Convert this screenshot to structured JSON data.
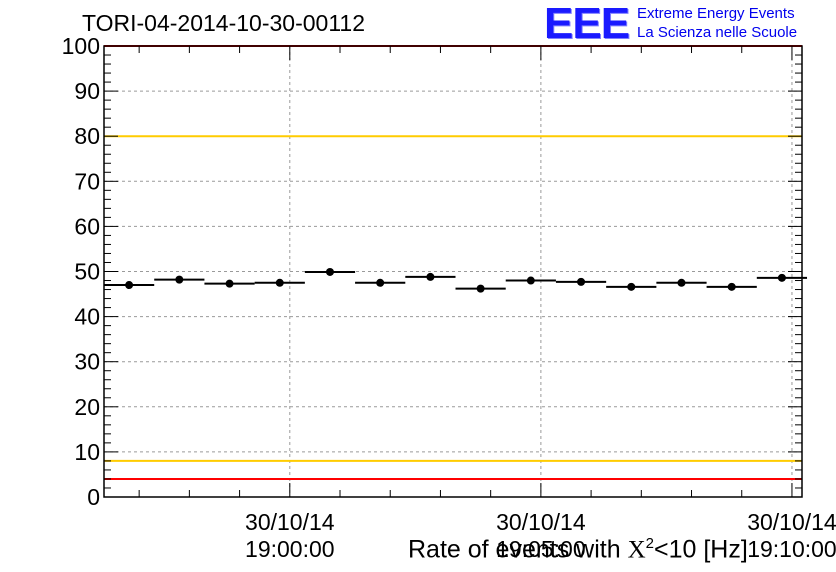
{
  "header": {
    "title": "TORI-04-2014-10-30-00112",
    "logo_mark": "EEE",
    "logo_line1": "Extreme Energy Events",
    "logo_line2": "La Scienza nelle Scuole"
  },
  "colors": {
    "red_limit": "#ff0000",
    "yellow_limit": "#ffcc00",
    "marker": "#000000",
    "grid": "#9a9a9a"
  },
  "chart_data": {
    "type": "scatter",
    "title": "TORI-04-2014-10-30-00112",
    "xlabel_prefix": "Rate of events with ",
    "xlabel_symbol": "X",
    "xlabel_sup": "2",
    "xlabel_suffix": "<10 [Hz]",
    "ylabel": "",
    "ylim": [
      0,
      100
    ],
    "yticks": [
      "0",
      "10",
      "20",
      "30",
      "40",
      "50",
      "60",
      "70",
      "80",
      "90",
      "100"
    ],
    "x_unit": "minutes",
    "xlim": [
      -3.7,
      10.2
    ],
    "xticks": [
      {
        "x": 0,
        "date": "30/10/14",
        "time": "19:00:00"
      },
      {
        "x": 5,
        "date": "30/10/14",
        "time": "19:05:00"
      },
      {
        "x": 10,
        "date": "30/10/14",
        "time": "19:10:00"
      }
    ],
    "grid": true,
    "errorbar_half_width": 0.5,
    "points": [
      {
        "x": -3.2,
        "y": 47.0
      },
      {
        "x": -2.2,
        "y": 48.2
      },
      {
        "x": -1.2,
        "y": 47.3
      },
      {
        "x": -0.2,
        "y": 47.5
      },
      {
        "x": 0.8,
        "y": 49.9
      },
      {
        "x": 1.8,
        "y": 47.5
      },
      {
        "x": 2.8,
        "y": 48.8
      },
      {
        "x": 3.8,
        "y": 46.2
      },
      {
        "x": 4.8,
        "y": 48.0
      },
      {
        "x": 5.8,
        "y": 47.7
      },
      {
        "x": 6.8,
        "y": 46.6
      },
      {
        "x": 7.8,
        "y": 47.5
      },
      {
        "x": 8.8,
        "y": 46.6
      },
      {
        "x": 9.8,
        "y": 48.6
      }
    ],
    "limit_lines": [
      {
        "y": 100,
        "color": "red"
      },
      {
        "y": 80,
        "color": "yellow"
      },
      {
        "y": 8,
        "color": "yellow"
      },
      {
        "y": 4,
        "color": "red"
      }
    ]
  }
}
